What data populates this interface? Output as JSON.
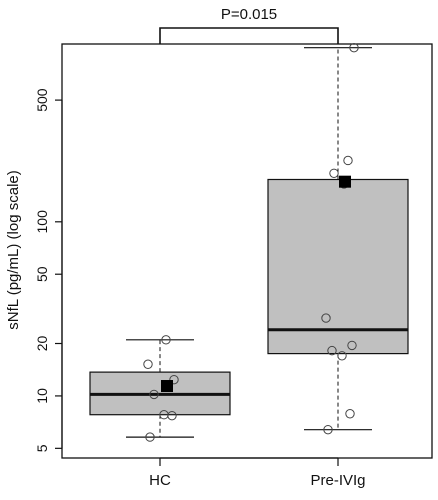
{
  "chart_data": {
    "type": "box",
    "ylabel": "sNfL (pg/mL) (log scale)",
    "yscale": "log",
    "ylim": [
      4.4,
      1050
    ],
    "yticks": [
      5,
      10,
      20,
      50,
      100,
      500
    ],
    "ytick_labels": [
      "5",
      "10",
      "20",
      "50",
      "100",
      "500"
    ],
    "categories": [
      "HC",
      "Pre-IVIg"
    ],
    "annotation": "P=0.015",
    "colors": {
      "box_fill": "#c0c0c0",
      "stroke": "#111111"
    },
    "groups": [
      {
        "name": "HC",
        "whisker_low": 5.8,
        "q1": 7.8,
        "median": 10.2,
        "q3": 13.7,
        "whisker_high": 21,
        "mean": 11.4,
        "points": [
          5.8,
          7.7,
          7.8,
          10.2,
          12.4,
          15.2,
          21
        ]
      },
      {
        "name": "Pre-IVIg",
        "whisker_low": 6.4,
        "q1": 17.5,
        "median": 24,
        "q3": 175,
        "whisker_high": 1000,
        "mean": 170,
        "points": [
          6.4,
          7.9,
          17,
          18.2,
          19.5,
          28,
          165,
          190,
          225,
          1000
        ]
      }
    ]
  }
}
